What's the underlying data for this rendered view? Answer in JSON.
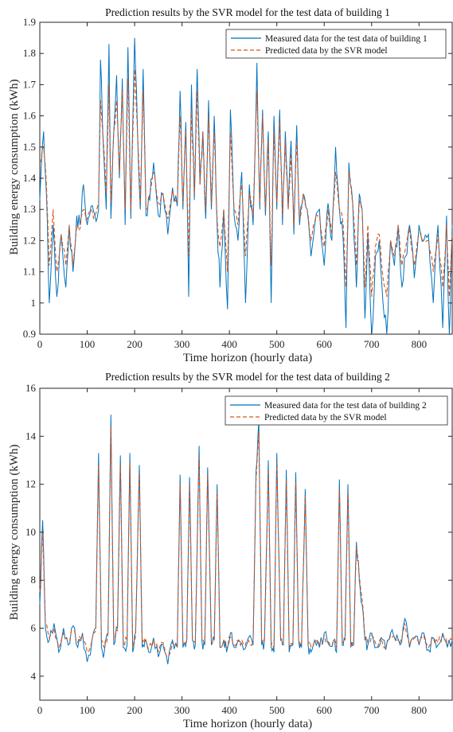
{
  "chart_data": [
    {
      "type": "line",
      "title": "Prediction results by the SVR model for the test data of building 1",
      "xlabel": "Time horizon (hourly data)",
      "ylabel": "Building energy consumption (kWh)",
      "xlim": [
        0,
        870
      ],
      "ylim": [
        0.9,
        1.9
      ],
      "xticks": [
        0,
        100,
        200,
        300,
        400,
        500,
        600,
        700,
        800
      ],
      "yticks": [
        0.9,
        1,
        1.1,
        1.2,
        1.3,
        1.4,
        1.5,
        1.6,
        1.7,
        1.8,
        1.9
      ],
      "ytick_labels": [
        "0.9",
        "1",
        "1.1",
        "1.2",
        "1.3",
        "1.4",
        "1.5",
        "1.6",
        "1.7",
        "1.8",
        "1.9"
      ],
      "grid": false,
      "legend_position": "top-right",
      "series": [
        {
          "name": "Measured data for the test data of building 1",
          "color": "#0072BD",
          "style": "solid",
          "x": [
            0,
            8,
            14,
            20,
            28,
            36,
            45,
            55,
            62,
            70,
            78,
            85,
            92,
            100,
            108,
            116,
            124,
            128,
            134,
            140,
            146,
            150,
            156,
            162,
            168,
            174,
            180,
            186,
            192,
            200,
            206,
            212,
            218,
            224,
            232,
            240,
            250,
            260,
            270,
            280,
            290,
            296,
            302,
            308,
            314,
            320,
            326,
            332,
            338,
            344,
            350,
            356,
            362,
            368,
            374,
            380,
            388,
            396,
            402,
            410,
            418,
            426,
            434,
            442,
            450,
            458,
            464,
            470,
            476,
            482,
            488,
            494,
            500,
            506,
            512,
            518,
            524,
            530,
            536,
            542,
            548,
            556,
            564,
            572,
            580,
            590,
            600,
            608,
            616,
            624,
            632,
            640,
            646,
            652,
            660,
            668,
            674,
            680,
            686,
            692,
            700,
            708,
            716,
            724,
            732,
            740,
            748,
            756,
            764,
            772,
            780,
            790,
            800,
            810,
            820,
            830,
            840,
            850,
            858,
            864,
            870
          ],
          "y": [
            1.33,
            1.55,
            1.35,
            1.0,
            1.25,
            1.02,
            1.22,
            1.05,
            1.25,
            1.1,
            1.28,
            1.25,
            1.38,
            1.25,
            1.31,
            1.28,
            1.3,
            1.78,
            1.5,
            1.3,
            1.83,
            1.27,
            1.55,
            1.73,
            1.4,
            1.72,
            1.25,
            1.82,
            1.27,
            1.85,
            1.55,
            1.3,
            1.75,
            1.28,
            1.33,
            1.45,
            1.28,
            1.35,
            1.22,
            1.37,
            1.31,
            1.68,
            1.3,
            1.58,
            1.02,
            1.7,
            1.33,
            1.75,
            1.38,
            1.55,
            1.27,
            1.65,
            1.3,
            1.6,
            1.25,
            1.05,
            1.3,
            0.98,
            1.62,
            1.28,
            1.2,
            1.42,
            1.0,
            1.38,
            1.25,
            1.77,
            1.3,
            1.62,
            1.28,
            1.55,
            1.0,
            1.6,
            1.3,
            1.62,
            1.25,
            1.55,
            1.3,
            1.52,
            1.22,
            1.57,
            1.25,
            1.35,
            1.3,
            1.15,
            1.25,
            1.3,
            1.12,
            1.32,
            1.2,
            1.5,
            1.3,
            1.2,
            0.92,
            1.45,
            1.32,
            1.05,
            1.35,
            1.3,
            0.95,
            1.22,
            0.88,
            1.15,
            1.2,
            1.0,
            0.9,
            1.2,
            1.12,
            1.25,
            1.05,
            1.15,
            1.25,
            1.08,
            1.25,
            1.2,
            1.22,
            1.0,
            1.25,
            0.92,
            1.28,
            0.88,
            1.25
          ],
          "points_note": "irregular_noise"
        },
        {
          "name": "Predicted data by the SVR model",
          "color": "#D95319",
          "style": "dashed",
          "x": [
            0,
            8,
            14,
            20,
            28,
            36,
            45,
            55,
            62,
            70,
            78,
            85,
            92,
            100,
            108,
            116,
            124,
            128,
            134,
            140,
            146,
            150,
            156,
            162,
            168,
            174,
            180,
            186,
            192,
            200,
            206,
            212,
            218,
            224,
            232,
            240,
            250,
            260,
            270,
            280,
            290,
            296,
            302,
            308,
            314,
            320,
            326,
            332,
            338,
            344,
            350,
            356,
            362,
            368,
            374,
            380,
            388,
            396,
            402,
            410,
            418,
            426,
            434,
            442,
            450,
            458,
            464,
            470,
            476,
            482,
            488,
            494,
            500,
            506,
            512,
            518,
            524,
            530,
            536,
            542,
            548,
            556,
            564,
            572,
            580,
            590,
            600,
            608,
            616,
            624,
            632,
            640,
            646,
            652,
            660,
            668,
            674,
            680,
            686,
            692,
            700,
            708,
            716,
            724,
            732,
            740,
            748,
            756,
            764,
            772,
            780,
            790,
            800,
            810,
            820,
            830,
            840,
            850,
            858,
            864,
            870
          ],
          "y": [
            1.45,
            1.5,
            1.38,
            1.12,
            1.3,
            1.1,
            1.22,
            1.12,
            1.25,
            1.12,
            1.25,
            1.24,
            1.3,
            1.27,
            1.3,
            1.28,
            1.32,
            1.65,
            1.52,
            1.35,
            1.7,
            1.32,
            1.55,
            1.65,
            1.42,
            1.68,
            1.3,
            1.72,
            1.3,
            1.75,
            1.55,
            1.32,
            1.68,
            1.3,
            1.35,
            1.42,
            1.32,
            1.35,
            1.27,
            1.36,
            1.32,
            1.6,
            1.32,
            1.55,
            1.15,
            1.62,
            1.35,
            1.68,
            1.38,
            1.55,
            1.3,
            1.6,
            1.32,
            1.55,
            1.27,
            1.18,
            1.3,
            1.1,
            1.55,
            1.3,
            1.25,
            1.38,
            1.15,
            1.35,
            1.28,
            1.68,
            1.32,
            1.6,
            1.3,
            1.52,
            1.12,
            1.55,
            1.32,
            1.58,
            1.28,
            1.52,
            1.3,
            1.48,
            1.25,
            1.52,
            1.27,
            1.35,
            1.3,
            1.2,
            1.26,
            1.28,
            1.18,
            1.3,
            1.22,
            1.42,
            1.3,
            1.25,
            1.05,
            1.42,
            1.32,
            1.12,
            1.33,
            1.3,
            1.05,
            1.25,
            1.02,
            1.18,
            1.22,
            1.08,
            1.02,
            1.2,
            1.15,
            1.25,
            1.12,
            1.18,
            1.24,
            1.12,
            1.22,
            1.2,
            1.2,
            1.1,
            1.22,
            1.05,
            1.25,
            1.02,
            1.22
          ]
        }
      ]
    },
    {
      "type": "line",
      "title": "Prediction results by the SVR model for the test data of building 2",
      "xlabel": "Time horizon (hourly data)",
      "ylabel": "Building energy consumption (kWh)",
      "xlim": [
        0,
        870
      ],
      "ylim": [
        3,
        16
      ],
      "xticks": [
        0,
        100,
        200,
        300,
        400,
        500,
        600,
        700,
        800
      ],
      "yticks": [
        4,
        6,
        8,
        10,
        12,
        14,
        16
      ],
      "ytick_labels": [
        "4",
        "6",
        "8",
        "10",
        "12",
        "14",
        "16"
      ],
      "grid": false,
      "legend_position": "top-right",
      "series": [
        {
          "name": "Measured data for the test data of building 2",
          "color": "#0072BD",
          "style": "solid",
          "x": [
            0,
            6,
            12,
            20,
            30,
            40,
            50,
            60,
            70,
            80,
            90,
            100,
            110,
            118,
            124,
            130,
            136,
            144,
            150,
            156,
            164,
            170,
            176,
            184,
            190,
            196,
            202,
            210,
            216,
            222,
            230,
            240,
            250,
            260,
            270,
            280,
            290,
            296,
            302,
            310,
            316,
            322,
            328,
            336,
            342,
            348,
            354,
            362,
            368,
            374,
            380,
            388,
            394,
            402,
            410,
            420,
            430,
            440,
            450,
            456,
            462,
            468,
            474,
            482,
            488,
            494,
            500,
            508,
            514,
            520,
            526,
            534,
            540,
            546,
            552,
            560,
            566,
            572,
            580,
            590,
            600,
            610,
            620,
            626,
            632,
            638,
            644,
            650,
            656,
            662,
            668,
            674,
            680,
            686,
            692,
            700,
            710,
            720,
            730,
            740,
            750,
            760,
            770,
            780,
            790,
            800,
            810,
            820,
            830,
            840,
            850,
            860,
            870
          ],
          "y": [
            7.0,
            10.5,
            6.0,
            5.5,
            6.2,
            5.0,
            6.0,
            5.3,
            6.1,
            5.2,
            5.8,
            4.6,
            5.5,
            6.0,
            13.3,
            5.2,
            5.0,
            5.8,
            14.9,
            5.3,
            6.0,
            13.2,
            5.2,
            5.3,
            13.3,
            5.0,
            5.8,
            12.8,
            5.2,
            5.5,
            5.0,
            5.6,
            4.8,
            5.3,
            4.5,
            5.5,
            5.2,
            12.4,
            5.2,
            5.5,
            12.3,
            5.5,
            5.3,
            13.6,
            5.5,
            5.3,
            12.7,
            5.3,
            5.5,
            12.0,
            5.2,
            5.5,
            5.0,
            5.8,
            5.2,
            5.5,
            5.1,
            5.6,
            5.3,
            12.5,
            14.7,
            5.3,
            5.5,
            13.0,
            5.2,
            5.0,
            13.3,
            5.5,
            5.3,
            12.6,
            5.0,
            5.3,
            12.5,
            5.5,
            5.2,
            11.8,
            5.3,
            5.0,
            5.5,
            5.2,
            5.8,
            5.3,
            5.5,
            5.0,
            12.2,
            5.3,
            5.5,
            12.0,
            5.2,
            5.3,
            9.6,
            8.0,
            7.0,
            5.5,
            5.3,
            5.8,
            5.2,
            5.6,
            5.1,
            5.8,
            5.5,
            5.3,
            6.4,
            5.2,
            5.6,
            5.3,
            5.8,
            5.1,
            5.6,
            5.3,
            5.8,
            5.2,
            5.5
          ]
        },
        {
          "name": "Predicted data by the SVR model",
          "color": "#D95319",
          "style": "dashed",
          "x": [
            0,
            6,
            12,
            20,
            30,
            40,
            50,
            60,
            70,
            80,
            90,
            100,
            110,
            118,
            124,
            130,
            136,
            144,
            150,
            156,
            164,
            170,
            176,
            184,
            190,
            196,
            202,
            210,
            216,
            222,
            230,
            240,
            250,
            260,
            270,
            280,
            290,
            296,
            302,
            310,
            316,
            322,
            328,
            336,
            342,
            348,
            354,
            362,
            368,
            374,
            380,
            388,
            394,
            402,
            410,
            420,
            430,
            440,
            450,
            456,
            462,
            468,
            474,
            482,
            488,
            494,
            500,
            508,
            514,
            520,
            526,
            534,
            540,
            546,
            552,
            560,
            566,
            572,
            580,
            590,
            600,
            610,
            620,
            626,
            632,
            638,
            644,
            650,
            656,
            662,
            668,
            674,
            680,
            686,
            692,
            700,
            710,
            720,
            730,
            740,
            750,
            760,
            770,
            780,
            790,
            800,
            810,
            820,
            830,
            840,
            850,
            860,
            870
          ],
          "y": [
            7.5,
            10.0,
            6.2,
            5.6,
            6.0,
            5.2,
            5.8,
            5.5,
            5.9,
            5.4,
            5.7,
            5.0,
            5.5,
            5.9,
            12.8,
            5.5,
            5.2,
            5.8,
            14.4,
            5.5,
            5.9,
            12.8,
            5.4,
            5.5,
            12.9,
            5.2,
            5.7,
            12.5,
            5.4,
            5.6,
            5.2,
            5.5,
            5.0,
            5.4,
            4.8,
            5.4,
            5.3,
            12.0,
            5.3,
            5.5,
            12.0,
            5.5,
            5.4,
            13.2,
            5.5,
            5.4,
            12.4,
            5.4,
            5.5,
            11.7,
            5.3,
            5.5,
            5.2,
            5.6,
            5.3,
            5.5,
            5.3,
            5.5,
            5.4,
            12.1,
            14.2,
            5.4,
            5.5,
            12.6,
            5.3,
            5.2,
            12.9,
            5.5,
            5.4,
            12.2,
            5.2,
            5.4,
            12.1,
            5.5,
            5.3,
            11.5,
            5.4,
            5.2,
            5.5,
            5.3,
            5.7,
            5.4,
            5.5,
            5.2,
            11.8,
            5.4,
            5.5,
            11.7,
            5.3,
            5.4,
            9.4,
            8.2,
            7.2,
            5.6,
            5.4,
            5.7,
            5.3,
            5.6,
            5.2,
            5.7,
            5.5,
            5.4,
            6.2,
            5.3,
            5.6,
            5.4,
            5.7,
            5.2,
            5.6,
            5.4,
            5.7,
            5.3,
            5.5
          ]
        }
      ]
    }
  ]
}
